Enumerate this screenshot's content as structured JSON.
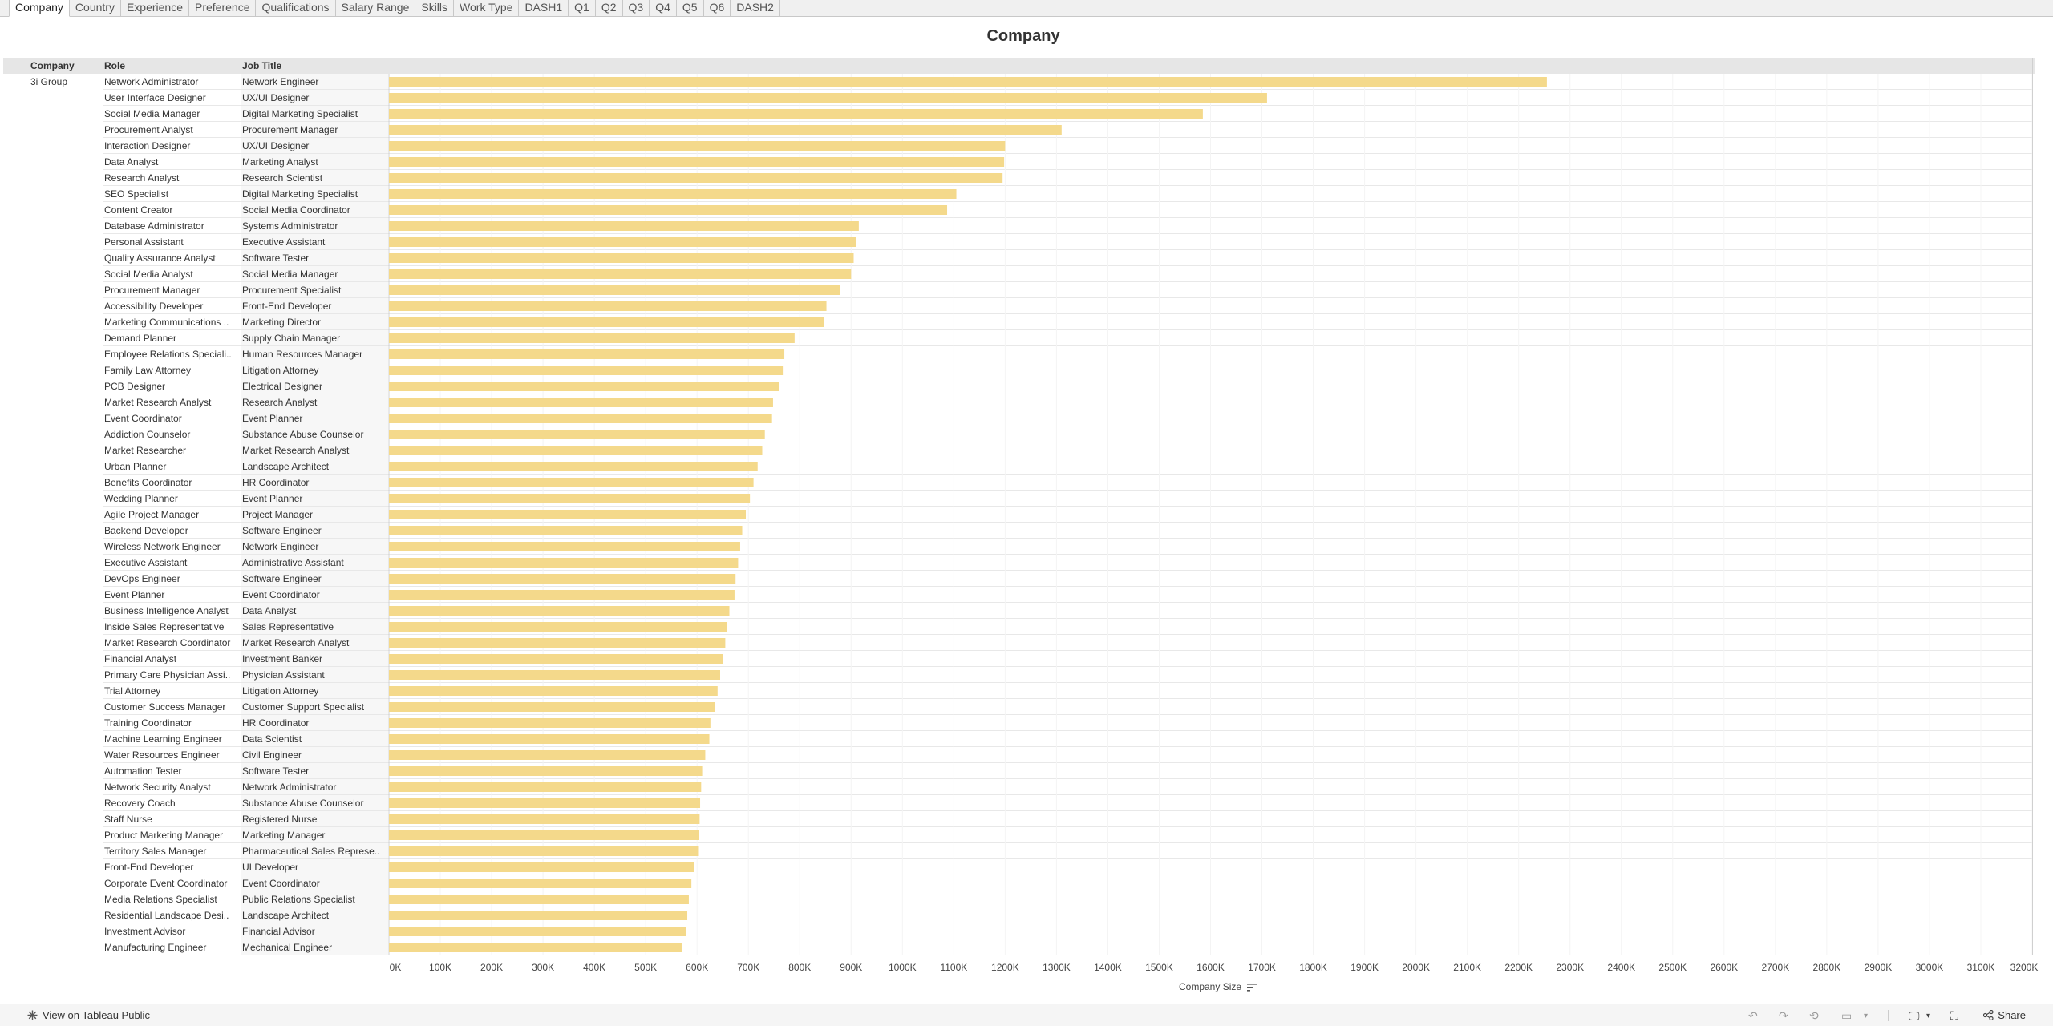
{
  "tabs": [
    {
      "label": "Company",
      "active": true
    },
    {
      "label": "Country"
    },
    {
      "label": "Experience"
    },
    {
      "label": "Preference"
    },
    {
      "label": "Qualifications"
    },
    {
      "label": "Salary Range"
    },
    {
      "label": "Skills"
    },
    {
      "label": "Work Type"
    },
    {
      "label": "DASH1"
    },
    {
      "label": "Q1"
    },
    {
      "label": "Q2"
    },
    {
      "label": "Q3"
    },
    {
      "label": "Q4"
    },
    {
      "label": "Q5"
    },
    {
      "label": "Q6"
    },
    {
      "label": "DASH2"
    }
  ],
  "footer": {
    "view_public": "View on Tableau Public",
    "share": "Share"
  },
  "colors": {
    "bar": "#f4d98b",
    "header_band": "#e6e6e6",
    "tab_active": "#ffffff"
  },
  "chart_data": {
    "type": "bar",
    "orientation": "horizontal",
    "title": "Company",
    "row_headers": [
      "Company",
      "Role",
      "Job Title"
    ],
    "company": "3i Group",
    "xlabel": "Company Size",
    "xlim": [
      0,
      3200000
    ],
    "x_ticks": [
      "0K",
      "100K",
      "200K",
      "300K",
      "400K",
      "500K",
      "600K",
      "700K",
      "800K",
      "900K",
      "1000K",
      "1100K",
      "1200K",
      "1300K",
      "1400K",
      "1500K",
      "1600K",
      "1700K",
      "1800K",
      "1900K",
      "2000K",
      "2100K",
      "2200K",
      "2300K",
      "2400K",
      "2500K",
      "2600K",
      "2700K",
      "2800K",
      "2900K",
      "3000K",
      "3100K",
      "3200K"
    ],
    "rows": [
      {
        "role": "Network Administrator",
        "job_title": "Network Engineer",
        "value": 2255000
      },
      {
        "role": "User Interface Designer",
        "job_title": "UX/UI Designer",
        "value": 1710000
      },
      {
        "role": "Social Media Manager",
        "job_title": "Digital Marketing Specialist",
        "value": 1585000
      },
      {
        "role": "Procurement Analyst",
        "job_title": "Procurement Manager",
        "value": 1310000
      },
      {
        "role": "Interaction Designer",
        "job_title": "UX/UI Designer",
        "value": 1200000
      },
      {
        "role": "Data Analyst",
        "job_title": "Marketing Analyst",
        "value": 1198000
      },
      {
        "role": "Research Analyst",
        "job_title": "Research Scientist",
        "value": 1195000
      },
      {
        "role": "SEO Specialist",
        "job_title": "Digital Marketing Specialist",
        "value": 1105000
      },
      {
        "role": "Content Creator",
        "job_title": "Social Media Coordinator",
        "value": 1087000
      },
      {
        "role": "Database Administrator",
        "job_title": "Systems Administrator",
        "value": 915000
      },
      {
        "role": "Personal Assistant",
        "job_title": "Executive Assistant",
        "value": 910000
      },
      {
        "role": "Quality Assurance Analyst",
        "job_title": "Software Tester",
        "value": 905000
      },
      {
        "role": "Social Media Analyst",
        "job_title": "Social Media Manager",
        "value": 900000
      },
      {
        "role": "Procurement Manager",
        "job_title": "Procurement Specialist",
        "value": 878000
      },
      {
        "role": "Accessibility Developer",
        "job_title": "Front-End Developer",
        "value": 852000
      },
      {
        "role": "Marketing Communications ..",
        "job_title": "Marketing Director",
        "value": 848000
      },
      {
        "role": "Demand Planner",
        "job_title": "Supply Chain Manager",
        "value": 790000
      },
      {
        "role": "Employee Relations Speciali..",
        "job_title": "Human Resources Manager",
        "value": 770000
      },
      {
        "role": "Family Law Attorney",
        "job_title": "Litigation Attorney",
        "value": 767000
      },
      {
        "role": "PCB Designer",
        "job_title": "Electrical Designer",
        "value": 760000
      },
      {
        "role": "Market Research Analyst",
        "job_title": "Research Analyst",
        "value": 748000
      },
      {
        "role": "Event Coordinator",
        "job_title": "Event Planner",
        "value": 746000
      },
      {
        "role": "Addiction Counselor",
        "job_title": "Substance Abuse Counselor",
        "value": 732000
      },
      {
        "role": "Market Researcher",
        "job_title": "Market Research Analyst",
        "value": 727000
      },
      {
        "role": "Urban Planner",
        "job_title": "Landscape Architect",
        "value": 718000
      },
      {
        "role": "Benefits Coordinator",
        "job_title": "HR Coordinator",
        "value": 710000
      },
      {
        "role": "Wedding Planner",
        "job_title": "Event Planner",
        "value": 703000
      },
      {
        "role": "Agile Project Manager",
        "job_title": "Project Manager",
        "value": 695000
      },
      {
        "role": "Backend Developer",
        "job_title": "Software Engineer",
        "value": 688000
      },
      {
        "role": "Wireless Network Engineer",
        "job_title": "Network Engineer",
        "value": 684000
      },
      {
        "role": "Executive Assistant",
        "job_title": "Administrative Assistant",
        "value": 680000
      },
      {
        "role": "DevOps Engineer",
        "job_title": "Software Engineer",
        "value": 675000
      },
      {
        "role": "Event Planner",
        "job_title": "Event Coordinator",
        "value": 673000
      },
      {
        "role": "Business Intelligence Analyst",
        "job_title": "Data Analyst",
        "value": 663000
      },
      {
        "role": "Inside Sales Representative",
        "job_title": "Sales Representative",
        "value": 658000
      },
      {
        "role": "Market Research Coordinator",
        "job_title": "Market Research Analyst",
        "value": 655000
      },
      {
        "role": "Financial Analyst",
        "job_title": "Investment Banker",
        "value": 650000
      },
      {
        "role": "Primary Care Physician Assi..",
        "job_title": "Physician Assistant",
        "value": 645000
      },
      {
        "role": "Trial Attorney",
        "job_title": "Litigation Attorney",
        "value": 640000
      },
      {
        "role": "Customer Success Manager",
        "job_title": "Customer Support Specialist",
        "value": 635000
      },
      {
        "role": "Training Coordinator",
        "job_title": "HR Coordinator",
        "value": 626000
      },
      {
        "role": "Machine Learning Engineer",
        "job_title": "Data Scientist",
        "value": 624000
      },
      {
        "role": "Water Resources Engineer",
        "job_title": "Civil Engineer",
        "value": 616000
      },
      {
        "role": "Automation Tester",
        "job_title": "Software Tester",
        "value": 610000
      },
      {
        "role": "Network Security Analyst",
        "job_title": "Network Administrator",
        "value": 608000
      },
      {
        "role": "Recovery Coach",
        "job_title": "Substance Abuse Counselor",
        "value": 606000
      },
      {
        "role": "Staff Nurse",
        "job_title": "Registered Nurse",
        "value": 605000
      },
      {
        "role": "Product Marketing Manager",
        "job_title": "Marketing Manager",
        "value": 604000
      },
      {
        "role": "Territory Sales Manager",
        "job_title": "Pharmaceutical Sales Represe..",
        "value": 602000
      },
      {
        "role": "Front-End Developer",
        "job_title": "UI Developer",
        "value": 594000
      },
      {
        "role": "Corporate Event Coordinator",
        "job_title": "Event Coordinator",
        "value": 589000
      },
      {
        "role": "Media Relations Specialist",
        "job_title": "Public Relations Specialist",
        "value": 584000
      },
      {
        "role": "Residential Landscape Desi..",
        "job_title": "Landscape Architect",
        "value": 581000
      },
      {
        "role": "Investment Advisor",
        "job_title": "Financial Advisor",
        "value": 579000
      },
      {
        "role": "Manufacturing Engineer",
        "job_title": "Mechanical Engineer",
        "value": 570000
      }
    ]
  }
}
